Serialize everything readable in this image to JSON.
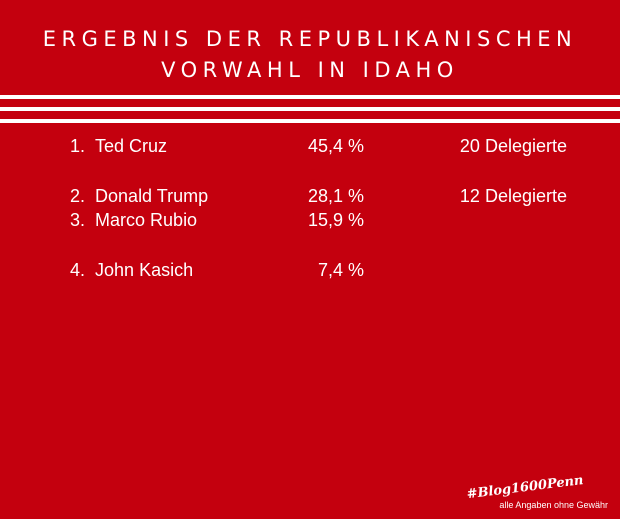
{
  "title": {
    "line1": "ERGEBNIS DER REPUBLIKANISCHEN",
    "line2": "VORWAHL IN IDAHO"
  },
  "results": [
    {
      "rank": "1.",
      "candidate": "Ted Cruz",
      "percent": "45,4 %",
      "delegates": "20 Delegierte"
    },
    {
      "rank": "2.",
      "candidate": "Donald Trump",
      "percent": "28,1 %",
      "delegates": "12 Delegierte"
    },
    {
      "rank": "3.",
      "candidate": "Marco Rubio",
      "percent": "15,9 %",
      "delegates": ""
    },
    {
      "rank": "4.",
      "candidate": "John Kasich",
      "percent": "7,4 %",
      "delegates": ""
    }
  ],
  "footer": {
    "hashtag": "#Blog1600Penn",
    "disclaimer": "alle Angaben ohne Gewähr"
  },
  "colors": {
    "background": "#c4000e",
    "text": "#ffffff"
  }
}
